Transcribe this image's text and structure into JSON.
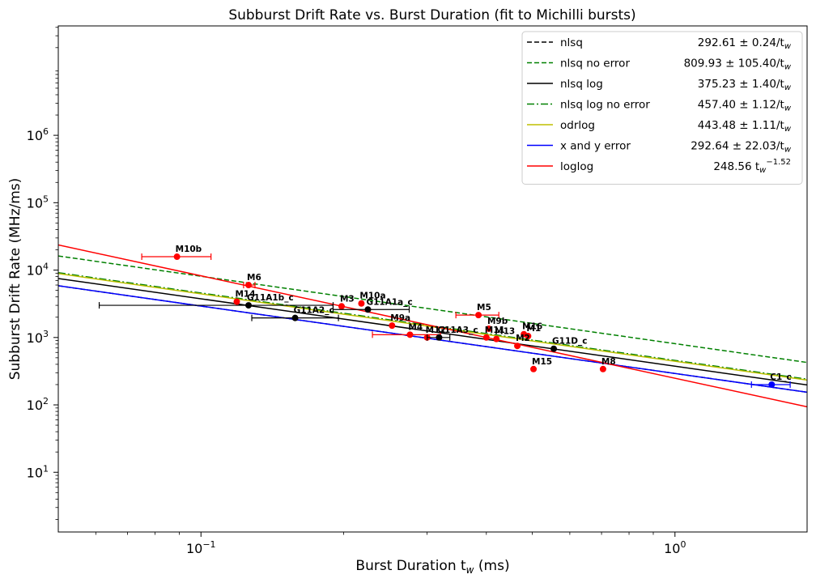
{
  "chart_data": {
    "type": "scatter",
    "title": "Subburst Drift Rate vs. Burst Duration (fit to Michilli bursts)",
    "xlabel": "Burst Duration t_w (ms)",
    "ylabel": "Subburst Drift Rate (MHz/ms)",
    "xscale": "log",
    "yscale": "log",
    "xlim": [
      0.05,
      1.9
    ],
    "ylim": [
      1.3,
      42000000
    ],
    "xticks": [
      {
        "v": 0.1,
        "base": "10",
        "exp": "−1"
      },
      {
        "v": 1,
        "base": "10",
        "exp": "0"
      }
    ],
    "yticks": [
      {
        "v": 10,
        "base": "10",
        "exp": "1"
      },
      {
        "v": 100,
        "base": "10",
        "exp": "2"
      },
      {
        "v": 1000,
        "base": "10",
        "exp": "3"
      },
      {
        "v": 10000,
        "base": "10",
        "exp": "4"
      },
      {
        "v": 100000,
        "base": "10",
        "exp": "5"
      },
      {
        "v": 1000000,
        "base": "10",
        "exp": "6"
      }
    ],
    "legend_position": "top-right",
    "fits": [
      {
        "name": "nlsq",
        "value": "292.61 ± 0.24/t",
        "sub": "w",
        "sup": "",
        "color": "#000000",
        "style": "dashed",
        "a": 292.61,
        "b": -1
      },
      {
        "name": "nlsq no error",
        "value": "809.93 ± 105.40/t",
        "sub": "w",
        "sup": "",
        "color": "#008000",
        "style": "dashed",
        "a": 809.93,
        "b": -1
      },
      {
        "name": "nlsq log",
        "value": "375.23 ± 1.40/t",
        "sub": "w",
        "sup": "",
        "color": "#000000",
        "style": "solid",
        "a": 375.23,
        "b": -1
      },
      {
        "name": "nlsq log no error",
        "value": "457.40 ± 1.12/t",
        "sub": "w",
        "sup": "",
        "color": "#008000",
        "style": "dashdot",
        "a": 457.4,
        "b": -1
      },
      {
        "name": "odrlog",
        "value": "443.48 ± 1.11/t",
        "sub": "w",
        "sup": "",
        "color": "#bfbf00",
        "style": "solid",
        "a": 443.48,
        "b": -1
      },
      {
        "name": "x and y error",
        "value": "292.64 ± 22.03/t",
        "sub": "w",
        "sup": "",
        "color": "#0000ff",
        "style": "solid",
        "a": 292.64,
        "b": -1
      },
      {
        "name": "loglog",
        "value": "248.56 t",
        "sub": "w",
        "sup": "−1.52",
        "color": "#ff0000",
        "style": "solid",
        "a": 248.56,
        "b": -1.52
      }
    ],
    "points": [
      {
        "label": "M10b",
        "x": 0.089,
        "y": 15800,
        "color": "#ff0000",
        "xerr": [
          0.075,
          0.105
        ]
      },
      {
        "label": "M6",
        "x": 0.126,
        "y": 6000,
        "color": "#ff0000",
        "xerr": [
          0.123,
          0.13
        ]
      },
      {
        "label": "M14",
        "x": 0.119,
        "y": 3400,
        "color": "#ff0000",
        "xerr": null
      },
      {
        "label": "G11A1b_c",
        "x": 0.126,
        "y": 3000,
        "color": "#000000",
        "xerr": [
          0.061,
          0.19
        ]
      },
      {
        "label": "G11A2_c",
        "x": 0.158,
        "y": 1950,
        "color": "#000000",
        "xerr": [
          0.128,
          0.195
        ]
      },
      {
        "label": "M3",
        "x": 0.198,
        "y": 2900,
        "color": "#ff0000",
        "xerr": null
      },
      {
        "label": "M10a",
        "x": 0.218,
        "y": 3200,
        "color": "#ff0000",
        "xerr": null
      },
      {
        "label": "G11A1a_c",
        "x": 0.225,
        "y": 2600,
        "color": "#000000",
        "xerr": [
          0.19,
          0.275
        ]
      },
      {
        "label": "M9a",
        "x": 0.253,
        "y": 1500,
        "color": "#ff0000",
        "xerr": null
      },
      {
        "label": "M4",
        "x": 0.276,
        "y": 1100,
        "color": "#ff0000",
        "xerr": [
          0.23,
          0.32
        ]
      },
      {
        "label": "M12",
        "x": 0.3,
        "y": 1000,
        "color": "#ff0000",
        "xerr": null
      },
      {
        "label": "G11A3_c",
        "x": 0.318,
        "y": 1000,
        "color": "#000000",
        "xerr": [
          0.3,
          0.335
        ]
      },
      {
        "label": "M5",
        "x": 0.385,
        "y": 2150,
        "color": "#ff0000",
        "xerr": [
          0.345,
          0.425
        ]
      },
      {
        "label": "M9b",
        "x": 0.405,
        "y": 1350,
        "color": "#ff0000",
        "xerr": null
      },
      {
        "label": "M11",
        "x": 0.4,
        "y": 1000,
        "color": "#ff0000",
        "xerr": null
      },
      {
        "label": "M13",
        "x": 0.42,
        "y": 950,
        "color": "#ff0000",
        "xerr": null
      },
      {
        "label": "M2",
        "x": 0.465,
        "y": 750,
        "color": "#ff0000",
        "xerr": null
      },
      {
        "label": "M16",
        "x": 0.48,
        "y": 1120,
        "color": "#ff0000",
        "xerr": null
      },
      {
        "label": "M1",
        "x": 0.49,
        "y": 1050,
        "color": "#ff0000",
        "xerr": null
      },
      {
        "label": "M15",
        "x": 0.503,
        "y": 340,
        "color": "#ff0000",
        "xerr": null
      },
      {
        "label": "G11D_c",
        "x": 0.555,
        "y": 680,
        "color": "#000000",
        "xerr": null
      },
      {
        "label": "M8",
        "x": 0.705,
        "y": 340,
        "color": "#ff0000",
        "xerr": null
      },
      {
        "label": "C1_c",
        "x": 1.6,
        "y": 200,
        "color": "#0000ff",
        "xerr": [
          1.45,
          1.75
        ]
      }
    ]
  }
}
